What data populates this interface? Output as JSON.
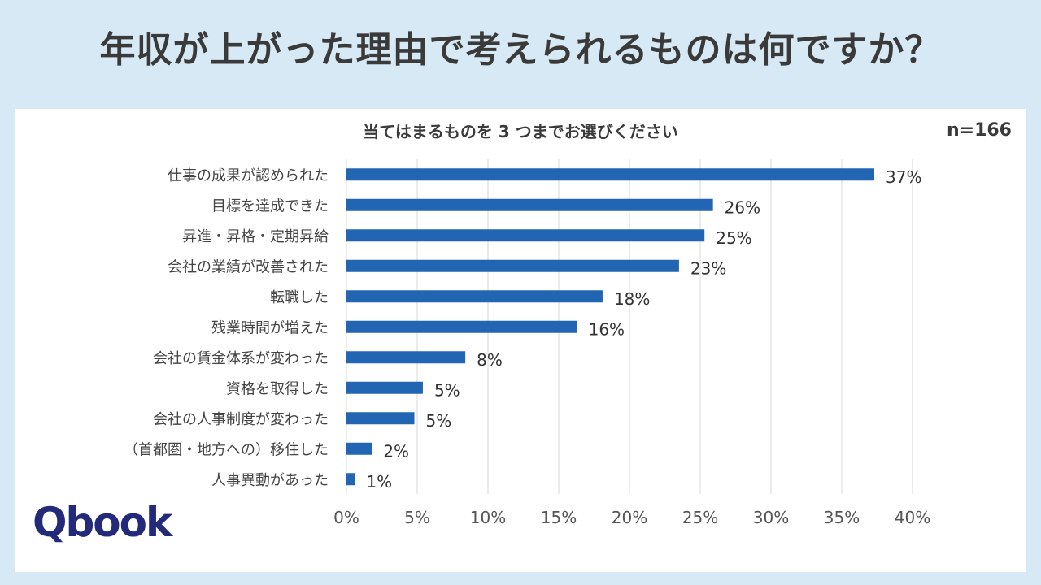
{
  "header": {
    "title": "年収が上がった理由で考えられるものは何ですか？"
  },
  "chart_meta": {
    "subtitle": "当てはまるものを 3 つまでお選びください",
    "sample_size": "n=166"
  },
  "brand": {
    "logo_text": "Qbook"
  },
  "colors": {
    "bar": "#2266b3",
    "grid": "#d9d9d9",
    "text": "#3a3a3a",
    "background": "#d6e9f5",
    "logo": "#232a7a"
  },
  "chart_data": {
    "type": "bar",
    "orientation": "horizontal",
    "categories": [
      "仕事の成果が認められた",
      "目標を達成できた",
      "昇進・昇格・定期昇給",
      "会社の業績が改善された",
      "転職した",
      "残業時間が増えた",
      "会社の賃金体系が変わった",
      "資格を取得した",
      "会社の人事制度が変わった",
      "（首都圏・地方への）移住した",
      "人事異動があった"
    ],
    "values": [
      37.3,
      25.9,
      25.3,
      23.5,
      18.1,
      16.3,
      8.4,
      5.4,
      4.8,
      1.8,
      0.6
    ],
    "data_labels": [
      "37%",
      "26%",
      "25%",
      "23%",
      "18%",
      "16%",
      "8%",
      "5%",
      "5%",
      "2%",
      "1%"
    ],
    "xlim": [
      0,
      40
    ],
    "xticks": [
      0,
      5,
      10,
      15,
      20,
      25,
      30,
      35,
      40
    ],
    "xtick_labels": [
      "0%",
      "5%",
      "10%",
      "15%",
      "20%",
      "25%",
      "30%",
      "35%",
      "40%"
    ],
    "grid": "vertical",
    "legend": "none"
  }
}
